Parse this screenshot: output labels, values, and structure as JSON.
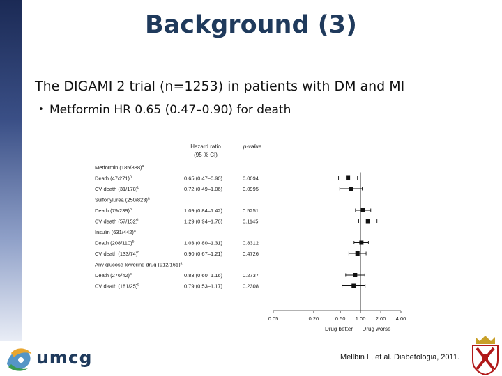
{
  "slide": {
    "title": "Background (3)",
    "subtitle": "The DIGAMI 2 trial (n=1253) in patients with DM and MI",
    "bullet": "Metformin HR 0.65 (0.47–0.90) for death",
    "citation": "Mellbin L, et al. Diabetologia, 2011.",
    "logo_text": "umcg",
    "bullet_glyph": "•"
  },
  "chart_data": {
    "type": "forest",
    "header_hr_line1": "Hazard ratio",
    "header_hr_line2": "(95 % CI)",
    "header_p": "p-value",
    "xscale": "log",
    "xlim": [
      0.05,
      4.0
    ],
    "xticks": [
      "0.05",
      "0.20",
      "0.50",
      "1.00",
      "2.00",
      "4.00"
    ],
    "xtick_values": [
      0.05,
      0.2,
      0.5,
      1.0,
      2.0,
      4.0
    ],
    "xlabel_left": "Drug better",
    "xlabel_right": "Drug worse",
    "reference_line": 1.0,
    "rows": [
      {
        "label": "Metformin (185/888)",
        "sup": "a",
        "group": true
      },
      {
        "label": "Death (47/271)",
        "sup": "b",
        "hr": 0.65,
        "lo": 0.47,
        "hi": 0.9,
        "hr_text": "0.65 (0.47–0.90)",
        "p": "0.0094"
      },
      {
        "label": "CV death (31/178)",
        "sup": "b",
        "hr": 0.72,
        "lo": 0.49,
        "hi": 1.06,
        "hr_text": "0.72 (0.49–1.06)",
        "p": "0.0995"
      },
      {
        "label": "Sulfonylurea (250/823)",
        "sup": "a",
        "group": true
      },
      {
        "label": "Death (79/239)",
        "sup": "b",
        "hr": 1.09,
        "lo": 0.84,
        "hi": 1.42,
        "hr_text": "1.09 (0.84–1.42)",
        "p": "0.5251"
      },
      {
        "label": "CV death (57/152)",
        "sup": "b",
        "hr": 1.29,
        "lo": 0.94,
        "hi": 1.76,
        "hr_text": "1.29 (0.94–1.76)",
        "p": "0.1145"
      },
      {
        "label": "Insulin (631/442)",
        "sup": "a",
        "group": true
      },
      {
        "label": "Death (208/110)",
        "sup": "b",
        "hr": 1.03,
        "lo": 0.8,
        "hi": 1.31,
        "hr_text": "1.03 (0.80–1.31)",
        "p": "0.8312"
      },
      {
        "label": "CV death (133/74)",
        "sup": "b",
        "hr": 0.9,
        "lo": 0.67,
        "hi": 1.21,
        "hr_text": "0.90 (0.67–1.21)",
        "p": "0.4726"
      },
      {
        "label": "Any glucose-lowering drug (912/161)",
        "sup": "a",
        "group": true
      },
      {
        "label": "Death (276/42)",
        "sup": "b",
        "hr": 0.83,
        "lo": 0.6,
        "hi": 1.16,
        "hr_text": "0.83 (0.60–1.16)",
        "p": "0.2737"
      },
      {
        "label": "CV death (181/25)",
        "sup": "b",
        "hr": 0.79,
        "lo": 0.53,
        "hi": 1.17,
        "hr_text": "0.79 (0.53–1.17)",
        "p": "0.2308"
      }
    ]
  }
}
